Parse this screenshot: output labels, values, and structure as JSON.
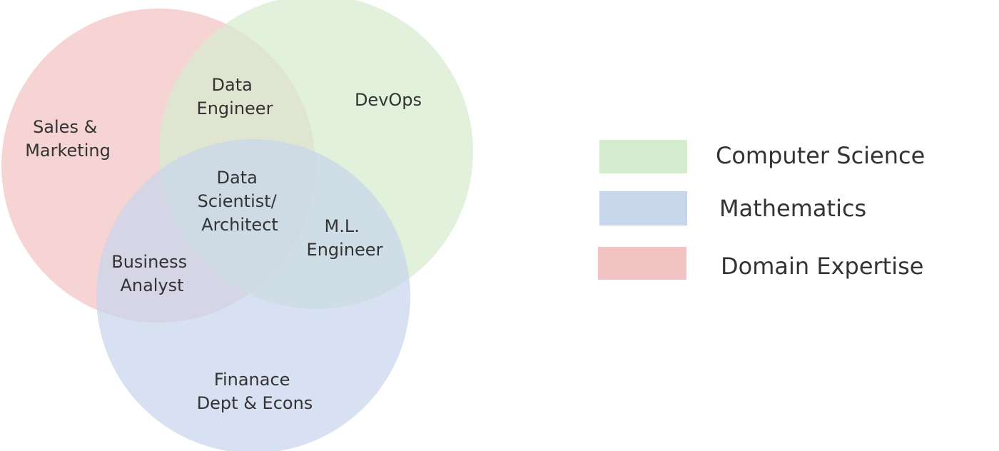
{
  "diagram": {
    "sets": [
      {
        "id": "domain",
        "color": "#f2c4c4"
      },
      {
        "id": "cs",
        "color": "#d5eccf"
      },
      {
        "id": "math",
        "color": "#c8d6ec"
      }
    ],
    "regions": {
      "sales_marketing": [
        "Sales &",
        "Marketing"
      ],
      "data_engineer": [
        "Data",
        "Engineer"
      ],
      "devops": [
        "DevOps"
      ],
      "data_scientist": [
        "Data",
        "Scientist/",
        "Architect"
      ],
      "ml_engineer": [
        "M.L.",
        "Engineer"
      ],
      "business_analyst": [
        "Business",
        "Analyst"
      ],
      "finance": [
        "Finanace",
        "Dept & Econs"
      ]
    }
  },
  "legend": [
    {
      "label": "Computer Science",
      "color": "#d5eccf"
    },
    {
      "label": "Mathematics",
      "color": "#c8d6ec"
    },
    {
      "label": "Domain Expertise",
      "color": "#f2c4c4"
    }
  ]
}
